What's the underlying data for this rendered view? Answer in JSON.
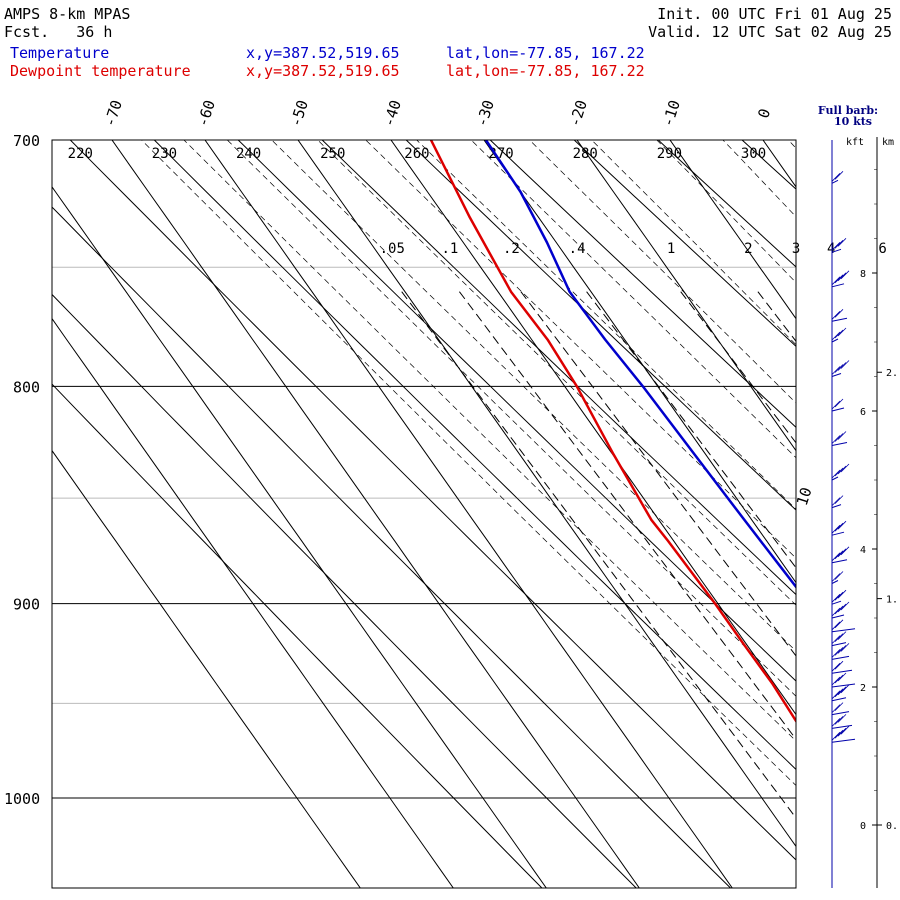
{
  "header": {
    "model": "AMPS 8-km MPAS",
    "fcst": "Fcst.   36 h",
    "init": "Init. 00 UTC Fri 01 Aug 25",
    "valid": "Valid. 12 UTC Sat 02 Aug 25"
  },
  "legend": {
    "temperature": "Temperature",
    "dewpoint": "Dewpoint temperature",
    "xy_temp": "x,y=387.52,519.65",
    "latlon_temp": "lat,lon=-77.85, 167.22",
    "xy_dew": "x,y=387.52,519.65",
    "latlon_dew": "lat,lon=-77.85, 167.22"
  },
  "barb_panel": {
    "title": "Full barb:",
    "title2": "10 kts",
    "kft": "kft",
    "km": "km"
  },
  "colors": {
    "temperature": "#0000cc",
    "dewpoint": "#dd0000"
  },
  "chart_data": {
    "type": "line",
    "title": "",
    "pressure_range_hPa": [
      700,
      1040
    ],
    "pressure_ticks": [
      700,
      800,
      900,
      1000
    ],
    "isotherm_labels": [
      "-70",
      "-60",
      "-50",
      "-40",
      "-30",
      "-20",
      "-10",
      "0",
      "10"
    ],
    "theta_labels": [
      "220",
      "230",
      "240",
      "250",
      "260",
      "270",
      "280",
      "290",
      "300"
    ],
    "mixing_ratio_labels": [
      ".05",
      ".1",
      ".2",
      ".4",
      "1",
      "2",
      "3",
      "4",
      "6"
    ],
    "kft_ticks": [
      "8",
      "6",
      "4",
      "2",
      "0"
    ],
    "km_ticks": [
      "2.",
      "1.",
      "0."
    ],
    "series": [
      {
        "name": "Temperature",
        "key": "temperature",
        "points": [
          {
            "p": 700,
            "t": -29.8
          },
          {
            "p": 720,
            "t": -30.0
          },
          {
            "p": 740,
            "t": -31.0
          },
          {
            "p": 760,
            "t": -32.3
          },
          {
            "p": 780,
            "t": -32.1
          },
          {
            "p": 800,
            "t": -31.6
          },
          {
            "p": 830,
            "t": -31.2
          },
          {
            "p": 860,
            "t": -30.8
          },
          {
            "p": 880,
            "t": -30.5
          },
          {
            "p": 900,
            "t": -30.2
          },
          {
            "p": 920,
            "t": -29.9
          },
          {
            "p": 940,
            "t": -29.4
          },
          {
            "p": 955,
            "t": -28.9
          },
          {
            "p": 965,
            "t": -28.7
          },
          {
            "p": 972,
            "t": -29.3
          }
        ]
      },
      {
        "name": "Dewpoint temperature",
        "key": "dewpoint",
        "points": [
          {
            "p": 700,
            "t": -35.7
          },
          {
            "p": 730,
            "t": -37.4
          },
          {
            "p": 760,
            "t": -38.6
          },
          {
            "p": 780,
            "t": -38.3
          },
          {
            "p": 800,
            "t": -38.7
          },
          {
            "p": 830,
            "t": -39.9
          },
          {
            "p": 860,
            "t": -40.8
          },
          {
            "p": 870,
            "t": -40.6
          },
          {
            "p": 900,
            "t": -40.3
          },
          {
            "p": 920,
            "t": -40.3
          },
          {
            "p": 940,
            "t": -40.2
          },
          {
            "p": 960,
            "t": -40.5
          },
          {
            "p": 966,
            "t": -40.0
          },
          {
            "p": 972,
            "t": -37.2
          }
        ]
      }
    ],
    "wind_barbs_kft": [
      9.3,
      8.3,
      7.8,
      7.3,
      7.0,
      6.5,
      6.0,
      5.5,
      5.0,
      4.6,
      4.2,
      3.8,
      3.5,
      3.2,
      3.0,
      2.8,
      2.6,
      2.4,
      2.2,
      2.0,
      1.8,
      1.6,
      1.4,
      1.2
    ]
  }
}
